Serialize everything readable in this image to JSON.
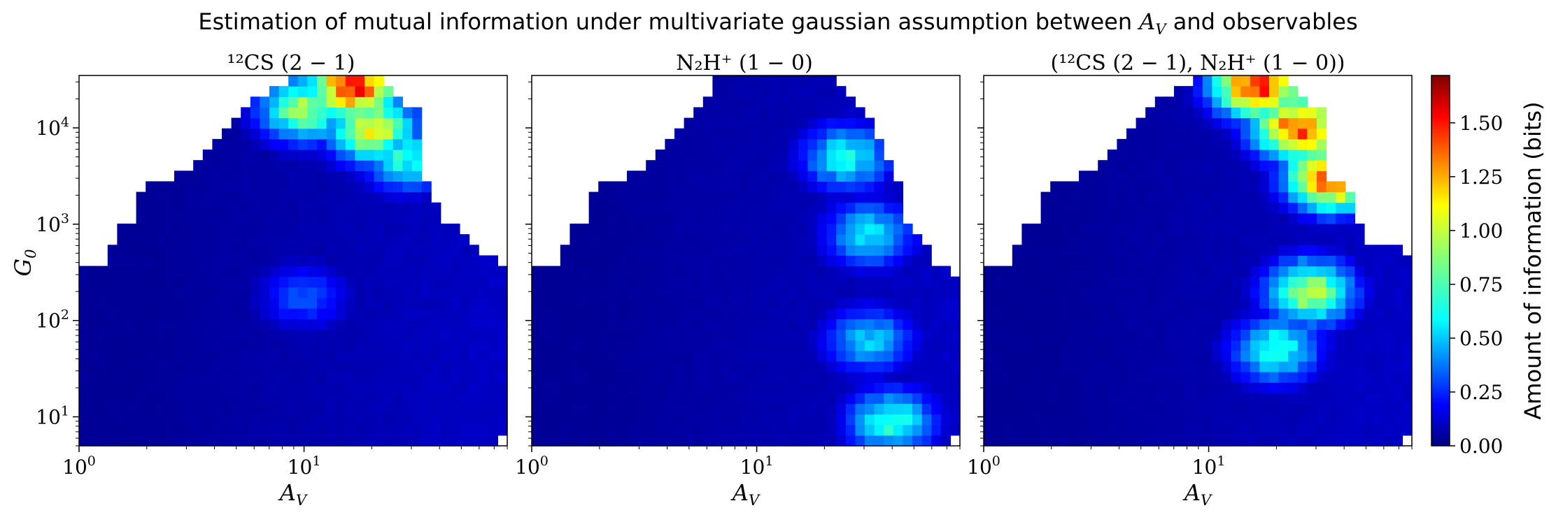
{
  "chart_data": {
    "type": "heatmap",
    "title": "Estimation of mutual information under multivariate gaussian assumption between A_V and observables",
    "title_parts": {
      "prefix": "Estimation of mutual information under multivariate gaussian assumption between ",
      "symbol_base": "A",
      "symbol_sub": "V",
      "suffix": " and observables"
    },
    "xscale": "log",
    "yscale": "log",
    "xlim": [
      1,
      80
    ],
    "ylim": [
      5,
      35000
    ],
    "xlabel": "A_V",
    "ylabel": "G_0",
    "x_ticks": [
      {
        "value": 1,
        "base": "10",
        "exp": "0"
      },
      {
        "value": 10,
        "base": "10",
        "exp": "1"
      }
    ],
    "y_ticks": [
      {
        "value": 10,
        "base": "10",
        "exp": "1"
      },
      {
        "value": 100,
        "base": "10",
        "exp": "2"
      },
      {
        "value": 1000,
        "base": "10",
        "exp": "3"
      },
      {
        "value": 10000,
        "base": "10",
        "exp": "4"
      }
    ],
    "colormap": "jet",
    "colorbar": {
      "label": "Amount of information (bits)",
      "vmin": 0.0,
      "vmax": 1.72,
      "ticks": [
        "0.00",
        "0.25",
        "0.50",
        "0.75",
        "1.00",
        "1.25",
        "1.50"
      ]
    },
    "grid": false,
    "grid_shape": [
      35,
      45
    ],
    "panels": [
      {
        "title": "¹²CS (2 − 1)",
        "coverage_max_log10G0": [
          2.6,
          2.6,
          2.6,
          2.8,
          3.0,
          3.05,
          3.3,
          3.4,
          3.45,
          3.5,
          3.55,
          3.6,
          3.7,
          3.8,
          3.9,
          4.0,
          4.1,
          4.2,
          4.35,
          4.35,
          4.45,
          4.45,
          4.55,
          4.6,
          4.6,
          4.6,
          4.6,
          4.6,
          4.6,
          4.6,
          4.6,
          4.55,
          4.45,
          4.35,
          4.2,
          4.2,
          3.4,
          3.2,
          3.0,
          3.0,
          2.9,
          2.8,
          2.7,
          2.7,
          2.6
        ],
        "features": [
          {
            "log10AV": 1.22,
            "log10G0": 4.45,
            "value": 1.45
          },
          {
            "log10AV": 1.3,
            "log10G0": 4.0,
            "value": 1.05
          },
          {
            "log10AV": 1.0,
            "log10G0": 4.2,
            "value": 0.9
          },
          {
            "log10AV": 1.45,
            "log10G0": 3.7,
            "value": 0.7
          },
          {
            "log10AV": 1.0,
            "log10G0": 2.25,
            "value": 0.35
          }
        ]
      },
      {
        "title": "N₂H⁺ (1 − 0)",
        "coverage_max_log10G0": [
          2.6,
          2.6,
          2.6,
          2.8,
          3.0,
          3.05,
          3.3,
          3.4,
          3.45,
          3.5,
          3.55,
          3.6,
          3.7,
          3.8,
          3.9,
          4.0,
          4.1,
          4.2,
          4.35,
          4.5,
          4.6,
          4.6,
          4.6,
          4.6,
          4.6,
          4.6,
          4.6,
          4.6,
          4.6,
          4.6,
          4.6,
          4.55,
          4.45,
          4.35,
          4.2,
          4.1,
          3.9,
          3.7,
          3.5,
          3.0,
          2.9,
          2.8,
          2.6,
          2.55,
          2.5
        ],
        "features": [
          {
            "log10AV": 1.4,
            "log10G0": 3.7,
            "value": 0.65
          },
          {
            "log10AV": 1.5,
            "log10G0": 2.9,
            "value": 0.6
          },
          {
            "log10AV": 1.5,
            "log10G0": 1.8,
            "value": 0.55
          },
          {
            "log10AV": 1.6,
            "log10G0": 0.95,
            "value": 0.7
          },
          {
            "log10AV": 1.6,
            "log10G0": 3.3,
            "value": 0.1
          }
        ]
      },
      {
        "title": "(¹²CS (2 − 1), N₂H⁺ (1 − 0))",
        "coverage_max_log10G0": [
          2.6,
          2.6,
          2.6,
          2.8,
          3.0,
          3.05,
          3.3,
          3.4,
          3.45,
          3.5,
          3.55,
          3.6,
          3.7,
          3.8,
          3.9,
          4.0,
          4.1,
          4.2,
          4.35,
          4.35,
          4.45,
          4.45,
          4.55,
          4.6,
          4.6,
          4.6,
          4.6,
          4.6,
          4.6,
          4.6,
          4.6,
          4.55,
          4.45,
          4.35,
          4.2,
          4.2,
          3.5,
          3.5,
          3.3,
          3.0,
          2.8,
          2.8,
          2.75,
          2.75,
          2.7
        ],
        "features": [
          {
            "log10AV": 1.22,
            "log10G0": 4.45,
            "value": 1.45
          },
          {
            "log10AV": 1.4,
            "log10G0": 4.0,
            "value": 1.35
          },
          {
            "log10AV": 1.55,
            "log10G0": 3.5,
            "value": 1.45
          },
          {
            "log10AV": 1.45,
            "log10G0": 2.3,
            "value": 0.95
          },
          {
            "log10AV": 1.3,
            "log10G0": 1.7,
            "value": 0.7
          }
        ]
      }
    ]
  }
}
